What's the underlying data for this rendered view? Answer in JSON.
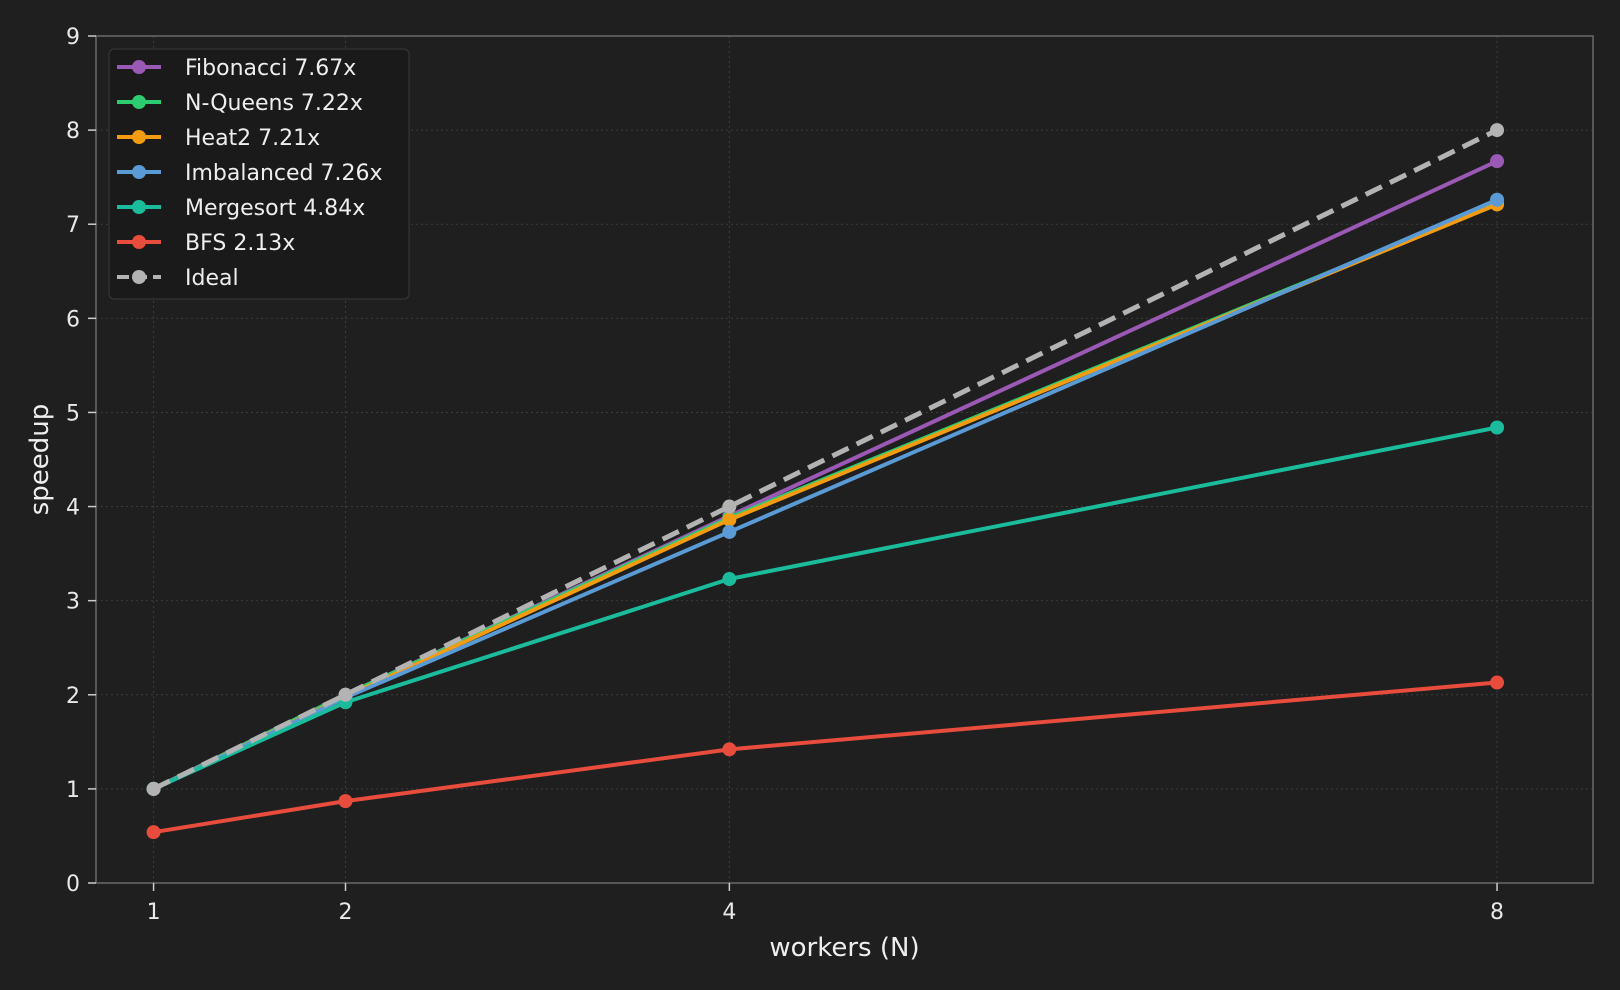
{
  "chart_data": {
    "type": "line",
    "xlabel": "workers (N)",
    "ylabel": "speedup",
    "x": [
      1,
      2,
      4,
      8
    ],
    "x_ticks": [
      1,
      2,
      4,
      8
    ],
    "xlim": [
      0.7,
      8.5
    ],
    "ylim": [
      0,
      9
    ],
    "y_ticks": [
      0,
      1,
      2,
      3,
      4,
      5,
      6,
      7,
      8,
      9
    ],
    "grid": true,
    "legend_position": "top-left",
    "series": [
      {
        "name": "Fibonacci 7.67x",
        "values": [
          1.0,
          2.0,
          3.9,
          7.67
        ],
        "color": "#9b59b6",
        "dashed": false
      },
      {
        "name": "N-Queens 7.22x",
        "values": [
          1.0,
          2.0,
          3.88,
          7.22
        ],
        "color": "#2ecc71",
        "dashed": false
      },
      {
        "name": "Heat2 7.21x",
        "values": [
          1.0,
          1.98,
          3.86,
          7.21
        ],
        "color": "#f39c12",
        "dashed": false
      },
      {
        "name": "Imbalanced 7.26x",
        "values": [
          1.0,
          1.97,
          3.73,
          7.26
        ],
        "color": "#5b9bd5",
        "dashed": false
      },
      {
        "name": "Mergesort 4.84x",
        "values": [
          1.0,
          1.92,
          3.23,
          4.84
        ],
        "color": "#1abc9c",
        "dashed": false
      },
      {
        "name": "BFS 2.13x",
        "values": [
          0.54,
          0.87,
          1.42,
          2.13
        ],
        "color": "#e74c3c",
        "dashed": false
      },
      {
        "name": "Ideal",
        "values": [
          1,
          2,
          4,
          8
        ],
        "color": "#b3b3b3",
        "dashed": true
      }
    ]
  }
}
